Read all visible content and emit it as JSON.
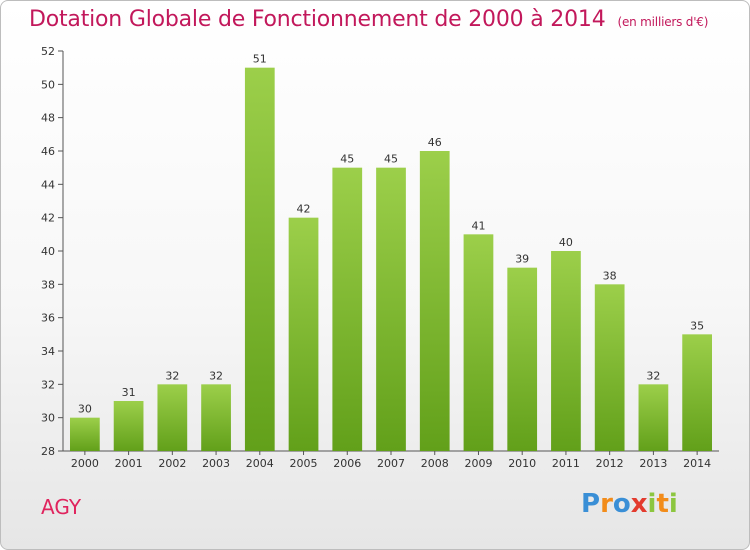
{
  "chart_data": {
    "type": "bar",
    "title": "Dotation Globale de Fonctionnement de 2000 à 2014",
    "subtitle": "(en milliers d'€)",
    "categories": [
      "2000",
      "2001",
      "2002",
      "2003",
      "2004",
      "2005",
      "2006",
      "2007",
      "2008",
      "2009",
      "2010",
      "2011",
      "2012",
      "2013",
      "2014"
    ],
    "values": [
      30,
      31,
      32,
      32,
      51,
      42,
      45,
      45,
      46,
      41,
      39,
      40,
      38,
      32,
      35
    ],
    "ylim": [
      28,
      52
    ],
    "yticks": [
      28,
      30,
      32,
      34,
      36,
      38,
      40,
      42,
      44,
      46,
      48,
      50,
      52
    ],
    "bar_color_top": "#9ccf4a",
    "bar_color_bottom": "#62a01a",
    "grid": false
  },
  "commune": "AGY",
  "logo": {
    "letters": [
      "P",
      "r",
      "o",
      "x",
      "i",
      "t",
      "i"
    ],
    "colors": [
      "#3a8fd6",
      "#f28c1a",
      "#3a8fd6",
      "#e33b2e",
      "#8cc63f",
      "#f28c1a",
      "#8cc63f"
    ]
  }
}
